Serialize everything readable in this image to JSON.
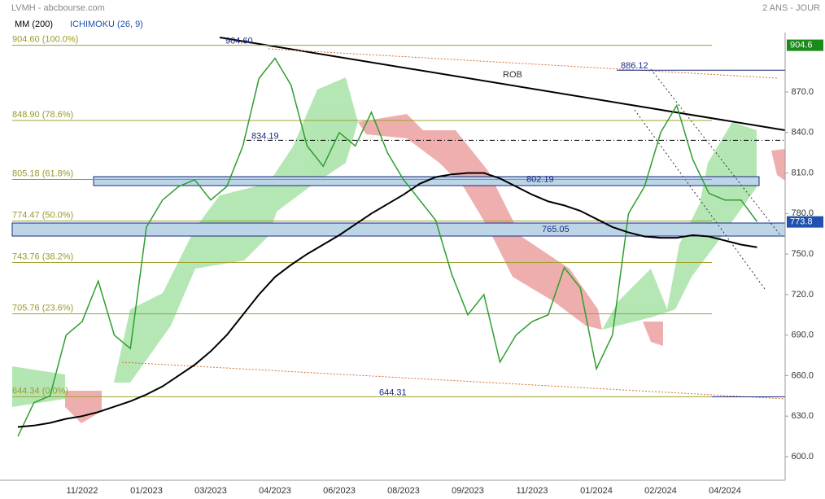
{
  "header": {
    "title": "LVMH - abcbourse.com",
    "period": "2 ANS - JOUR",
    "indicator_ma": "MM (200)",
    "indicator_ichimoku": "ICHIMOKU (26, 9)"
  },
  "chart_data": {
    "type": "line",
    "categories": [
      null,
      null,
      null,
      null,
      "11/2022",
      null,
      null,
      null,
      "01/2023",
      null,
      null,
      null,
      "03/2023",
      null,
      null,
      null,
      "04/2023",
      null,
      null,
      null,
      "06/2023",
      null,
      null,
      null,
      "08/2023",
      null,
      null,
      null,
      "09/2023",
      null,
      null,
      null,
      "11/2023",
      null,
      null,
      null,
      "01/2024",
      null,
      null,
      null,
      "02/2024",
      null,
      null,
      null,
      "04/2024",
      null,
      null
    ],
    "series": [
      {
        "name": "LVMH",
        "color": "#2e9e2e",
        "values": [
          615,
          640,
          645,
          690,
          700,
          730,
          690,
          680,
          770,
          790,
          800,
          805,
          790,
          800,
          830,
          880,
          895,
          875,
          830,
          815,
          840,
          830,
          855,
          825,
          805,
          790,
          775,
          735,
          705,
          720,
          670,
          690,
          700,
          705,
          740,
          725,
          665,
          690,
          780,
          800,
          840,
          860,
          820,
          795,
          790,
          790,
          774
        ]
      },
      {
        "name": "MM (200)",
        "color": "#000000",
        "values": [
          622,
          623,
          625,
          628,
          630,
          633,
          637,
          641,
          646,
          652,
          660,
          668,
          678,
          690,
          705,
          720,
          733,
          742,
          750,
          757,
          764,
          772,
          780,
          787,
          794,
          802,
          807,
          809,
          810,
          810,
          806,
          800,
          794,
          789,
          786,
          782,
          776,
          770,
          766,
          763,
          762,
          762,
          764,
          763,
          760,
          757,
          755
        ]
      }
    ],
    "ylim": [
      582.5,
      938.1
    ],
    "yticks": [
      {
        "value": 600,
        "label": "600.0"
      },
      {
        "value": 630,
        "label": "630.0"
      },
      {
        "value": 660,
        "label": "660.0"
      },
      {
        "value": 690,
        "label": "690.0"
      },
      {
        "value": 720,
        "label": "720.0"
      },
      {
        "value": 750,
        "label": "750.0"
      },
      {
        "value": 780,
        "label": "780.0"
      },
      {
        "value": 810,
        "label": "810.0"
      },
      {
        "value": 840,
        "label": "840.0"
      },
      {
        "value": 870,
        "label": "870.0"
      }
    ],
    "fib_levels": [
      {
        "value": 904.6,
        "label": "904.60 (100.0%)"
      },
      {
        "value": 848.9,
        "label": "848.90 (78.6%)"
      },
      {
        "value": 805.18,
        "label": "805.18 (61.8%)"
      },
      {
        "value": 774.47,
        "label": "774.47 (50.0%)"
      },
      {
        "value": 743.76,
        "label": "743.76 (38.2%)"
      },
      {
        "value": 705.76,
        "label": "705.76 (23.6%)"
      },
      {
        "value": 644.34,
        "label": "644.34 (0.0%)"
      }
    ],
    "annotations": [
      {
        "value": 904.6,
        "label": "904.60"
      },
      {
        "value": 886.12,
        "label": "886.12"
      },
      {
        "value": 834.19,
        "label": "834.19"
      },
      {
        "value": 802.19,
        "label": "802.19"
      },
      {
        "value": 765.05,
        "label": "765.05"
      },
      {
        "value": 644.31,
        "label": "644.31"
      }
    ],
    "trendline_label": "ROB",
    "price_tags": [
      {
        "value": 904.6,
        "color": "#1a8a1a"
      },
      {
        "value": 773.8,
        "color": "#2050b0"
      }
    ]
  }
}
